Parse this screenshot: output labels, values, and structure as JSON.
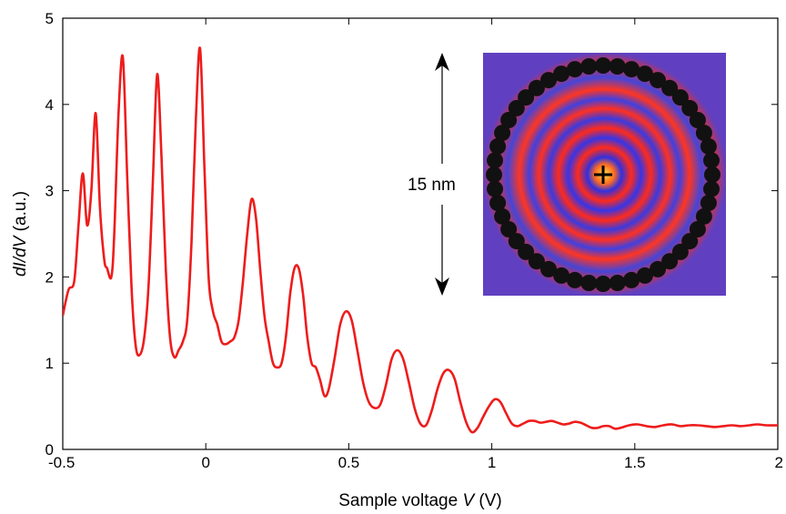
{
  "chart_data": {
    "type": "line",
    "title": "",
    "xlabel_parts": [
      "Sample voltage ",
      "V",
      " (V)"
    ],
    "ylabel_parts": [
      "d",
      "I",
      "/d",
      "V",
      " (a.u.)"
    ],
    "xlim": [
      -0.5,
      2
    ],
    "ylim": [
      0,
      5
    ],
    "x_ticks": [
      -0.5,
      0,
      0.5,
      1,
      1.5,
      2
    ],
    "x_tick_labels": [
      "-0.5",
      "0",
      "0.5",
      "1",
      "1.5",
      "2"
    ],
    "y_ticks": [
      0,
      1,
      2,
      3,
      4,
      5
    ],
    "y_tick_labels": [
      "0",
      "1",
      "2",
      "3",
      "4",
      "5"
    ],
    "grid": false,
    "legend": "none",
    "series": [
      {
        "color": "#ee1c1c",
        "x": [
          -0.5,
          -0.48,
          -0.46,
          -0.445,
          -0.43,
          -0.415,
          -0.4,
          -0.385,
          -0.37,
          -0.355,
          -0.345,
          -0.33,
          -0.32,
          -0.305,
          -0.29,
          -0.275,
          -0.26,
          -0.245,
          -0.23,
          -0.215,
          -0.2,
          -0.185,
          -0.17,
          -0.155,
          -0.14,
          -0.125,
          -0.11,
          -0.095,
          -0.08,
          -0.065,
          -0.05,
          -0.035,
          -0.02,
          -0.005,
          0.01,
          0.025,
          0.04,
          0.055,
          0.07,
          0.085,
          0.1,
          0.115,
          0.13,
          0.145,
          0.16,
          0.175,
          0.19,
          0.205,
          0.22,
          0.235,
          0.25,
          0.265,
          0.28,
          0.295,
          0.31,
          0.325,
          0.34,
          0.355,
          0.37,
          0.385,
          0.4,
          0.415,
          0.43,
          0.45,
          0.47,
          0.49,
          0.51,
          0.53,
          0.55,
          0.57,
          0.59,
          0.61,
          0.63,
          0.65,
          0.67,
          0.69,
          0.71,
          0.73,
          0.75,
          0.77,
          0.79,
          0.81,
          0.83,
          0.85,
          0.87,
          0.89,
          0.91,
          0.93,
          0.95,
          0.97,
          0.99,
          1.01,
          1.03,
          1.05,
          1.07,
          1.09,
          1.11,
          1.13,
          1.15,
          1.17,
          1.19,
          1.21,
          1.23,
          1.25,
          1.27,
          1.29,
          1.31,
          1.33,
          1.35,
          1.37,
          1.39,
          1.41,
          1.43,
          1.45,
          1.48,
          1.51,
          1.54,
          1.57,
          1.6,
          1.63,
          1.66,
          1.69,
          1.72,
          1.75,
          1.78,
          1.81,
          1.84,
          1.87,
          1.9,
          1.93,
          1.96,
          2.0
        ],
        "y": [
          1.55,
          1.85,
          1.95,
          2.6,
          3.2,
          2.6,
          3.0,
          3.9,
          2.8,
          2.2,
          2.1,
          2.0,
          2.5,
          3.9,
          4.55,
          3.2,
          1.9,
          1.2,
          1.1,
          1.3,
          1.9,
          3.1,
          4.35,
          3.4,
          2.1,
          1.3,
          1.07,
          1.15,
          1.25,
          1.5,
          2.4,
          3.8,
          4.65,
          3.3,
          2.0,
          1.6,
          1.45,
          1.25,
          1.22,
          1.25,
          1.3,
          1.5,
          1.95,
          2.5,
          2.9,
          2.7,
          2.1,
          1.55,
          1.25,
          1.0,
          0.95,
          1.0,
          1.3,
          1.8,
          2.1,
          2.1,
          1.8,
          1.3,
          1.0,
          0.95,
          0.8,
          0.62,
          0.7,
          1.05,
          1.45,
          1.6,
          1.5,
          1.15,
          0.78,
          0.55,
          0.48,
          0.52,
          0.75,
          1.05,
          1.15,
          1.05,
          0.78,
          0.48,
          0.3,
          0.28,
          0.45,
          0.7,
          0.88,
          0.92,
          0.82,
          0.55,
          0.32,
          0.2,
          0.25,
          0.38,
          0.5,
          0.58,
          0.55,
          0.42,
          0.3,
          0.27,
          0.3,
          0.33,
          0.33,
          0.31,
          0.32,
          0.33,
          0.31,
          0.29,
          0.3,
          0.32,
          0.31,
          0.28,
          0.25,
          0.25,
          0.27,
          0.27,
          0.24,
          0.25,
          0.28,
          0.29,
          0.27,
          0.26,
          0.28,
          0.29,
          0.27,
          0.28,
          0.28,
          0.27,
          0.26,
          0.27,
          0.28,
          0.27,
          0.28,
          0.29,
          0.28,
          0.28
        ]
      }
    ],
    "inset": {
      "description_image": "corral-ring-map",
      "scale_label": "15 nm",
      "arrow": "double-vertical-arrow-icon",
      "marker": "crosshair-plus-icon",
      "colors": {
        "red": "#ff2a1a",
        "blue": "#3030e0",
        "black": "#111111",
        "yellow": "#ffe040"
      }
    }
  }
}
